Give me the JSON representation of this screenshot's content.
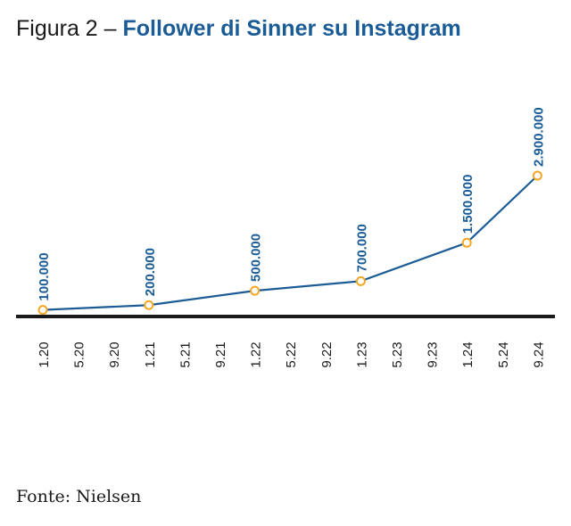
{
  "title": {
    "prefix": "Figura 2 –",
    "main": "Follower di Sinner su Instagram"
  },
  "source": "Fonte: Nielsen",
  "colors": {
    "line": "#1b5c96",
    "marker": "#f5a623",
    "axis": "#1a1a1a",
    "label": "#1b5c96"
  },
  "chart_data": {
    "type": "line",
    "title": "Follower di Sinner su Instagram",
    "xlabel": "",
    "ylabel": "",
    "x_ticks": [
      "1.20",
      "5.20",
      "9.20",
      "1.21",
      "5.21",
      "9.21",
      "1.22",
      "5.22",
      "9.22",
      "1.23",
      "5.23",
      "9.23",
      "1.24",
      "5.24",
      "9.24"
    ],
    "series": [
      {
        "name": "Follower",
        "x": [
          "1.20",
          "1.21",
          "1.22",
          "1.23",
          "1.24",
          "9.24"
        ],
        "values": [
          100000,
          200000,
          500000,
          700000,
          1500000,
          2900000
        ],
        "labels": [
          "100.000",
          "200.000",
          "500.000",
          "700.000",
          "1.500.000",
          "2.900.000"
        ]
      }
    ],
    "ylim": [
      0,
      2900000
    ],
    "grid": false,
    "legend": "none"
  }
}
